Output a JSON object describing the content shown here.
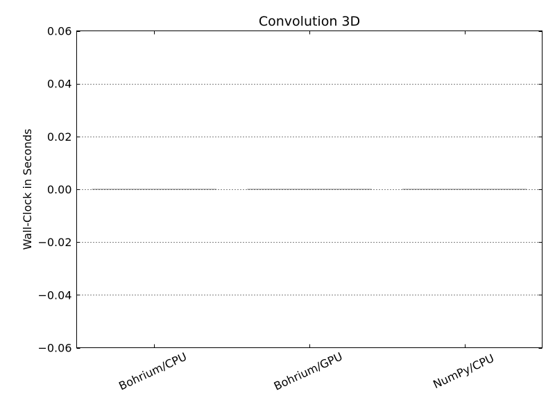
{
  "chart_data": {
    "type": "bar",
    "title": "Convolution 3D",
    "xlabel": "",
    "ylabel": "Wall-Clock in Seconds",
    "categories": [
      "Bohrium/CPU",
      "Bohrium/GPU",
      "NumPy/CPU"
    ],
    "values": [
      0.0,
      0.0,
      0.0
    ],
    "ylim": [
      -0.06,
      0.06
    ],
    "yticks": [
      -0.06,
      -0.04,
      -0.02,
      0.0,
      0.02,
      0.04,
      0.06
    ],
    "ytick_labels": [
      "−0.06",
      "−0.04",
      "−0.02",
      "0.00",
      "0.02",
      "0.04",
      "0.06"
    ],
    "grid": "y-dotted",
    "legend": "none",
    "colors": {
      "bar_edge": "#000000",
      "grid": "#000000",
      "axes": "#000000",
      "background": "#ffffff"
    }
  }
}
